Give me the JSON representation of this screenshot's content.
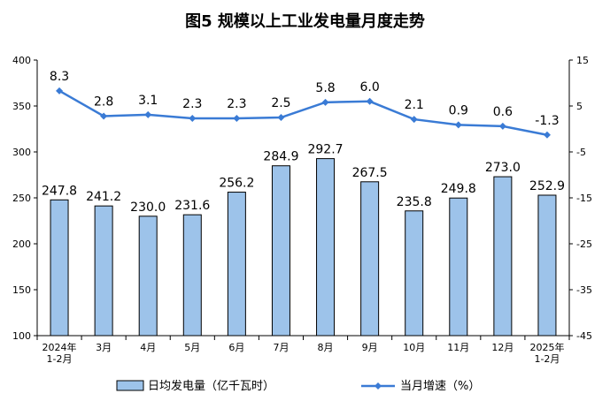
{
  "chart_data": {
    "type": "bar+line",
    "title": "图5  规模以上工业发电量月度走势",
    "categories": [
      "2024年\n1-2月",
      "3月",
      "4月",
      "5月",
      "6月",
      "7月",
      "8月",
      "9月",
      "10月",
      "11月",
      "12月",
      "2025年\n1-2月"
    ],
    "series": [
      {
        "name": "日均发电量（亿千瓦时）",
        "type": "bar",
        "axis": "left",
        "values": [
          247.8,
          241.2,
          230.0,
          231.6,
          256.2,
          284.9,
          292.7,
          267.5,
          235.8,
          249.8,
          273.0,
          252.9
        ],
        "labels": [
          "247.8",
          "241.2",
          "230.0",
          "231.6",
          "256.2",
          "284.9",
          "292.7",
          "267.5",
          "235.8",
          "249.8",
          "273.0",
          "252.9"
        ],
        "color": "#9dc3ea"
      },
      {
        "name": "当月增速（%）",
        "type": "line",
        "axis": "right",
        "values": [
          8.3,
          2.8,
          3.1,
          2.3,
          2.3,
          2.5,
          5.8,
          6.0,
          2.1,
          0.9,
          0.6,
          -1.3
        ],
        "labels": [
          "8.3",
          "2.8",
          "3.1",
          "2.3",
          "2.3",
          "2.5",
          "5.8",
          "6.0",
          "2.1",
          "0.9",
          "0.6",
          "-1.3"
        ],
        "color": "#3a7bd5"
      }
    ],
    "y_left": {
      "min": 100,
      "max": 400,
      "ticks": [
        100,
        150,
        200,
        250,
        300,
        350,
        400
      ]
    },
    "y_right": {
      "min": -45,
      "max": 15,
      "ticks": [
        15,
        5,
        -5,
        -15,
        -25,
        -35,
        -45
      ]
    },
    "grid": false,
    "legend": "bottom"
  }
}
